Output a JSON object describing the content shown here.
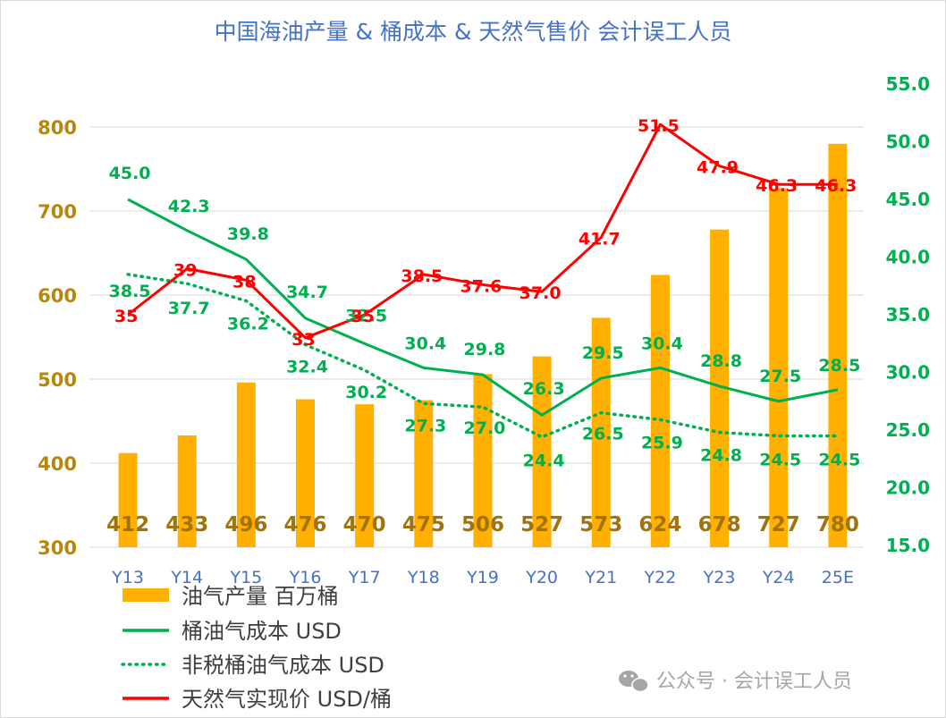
{
  "chart_data": {
    "type": "bar+line",
    "title": "中国海油产量 & 桶成本 & 天然气售价 会计误工人员",
    "categories": [
      "Y13",
      "Y14",
      "Y15",
      "Y16",
      "Y17",
      "Y18",
      "Y19",
      "Y20",
      "Y21",
      "Y22",
      "Y23",
      "Y24",
      "25E"
    ],
    "left_axis": {
      "ylim": [
        300,
        800
      ],
      "ticks": [
        "300",
        "400",
        "500",
        "600",
        "700",
        "800"
      ]
    },
    "right_axis": {
      "ylim": [
        15,
        55
      ],
      "ticks": [
        "15.0",
        "20.0",
        "25.0",
        "30.0",
        "35.0",
        "40.0",
        "45.0",
        "50.0",
        "55.0"
      ]
    },
    "grid": true,
    "legend_position": "bottom-left",
    "series": [
      {
        "name": "油气产量 百万桶",
        "type": "bar",
        "axis": "left",
        "color": "#ffb000",
        "values": [
          412,
          433,
          496,
          476,
          470,
          475,
          506,
          527,
          573,
          624,
          678,
          727,
          780
        ],
        "labels": [
          "412",
          "433",
          "496",
          "476",
          "470",
          "475",
          "506",
          "527",
          "573",
          "624",
          "678",
          "727",
          "780"
        ]
      },
      {
        "name": "桶油气成本 USD",
        "type": "line",
        "axis": "right",
        "color": "#00b050",
        "dash": "solid",
        "values": [
          45.0,
          42.3,
          39.8,
          34.7,
          32.5,
          30.4,
          29.8,
          26.3,
          29.5,
          30.4,
          28.8,
          27.5,
          28.5
        ],
        "labels": [
          "45.0",
          "42.3",
          "39.8",
          "34.7",
          "32.5",
          "30.4",
          "29.8",
          "26.3",
          "29.5",
          "30.4",
          "28.8",
          "27.5",
          "28.5"
        ]
      },
      {
        "name": "非税桶油气成本 USD",
        "type": "line",
        "axis": "right",
        "color": "#00b050",
        "dash": "dotted",
        "values": [
          38.5,
          37.7,
          36.2,
          32.4,
          30.2,
          27.3,
          27.0,
          24.4,
          26.5,
          25.9,
          24.8,
          24.5,
          24.5
        ],
        "labels": [
          "38.5",
          "37.7",
          "36.2",
          "32.4",
          "30.2",
          "27.3",
          "27.0",
          "24.4",
          "26.5",
          "25.9",
          "24.8",
          "24.5",
          "24.5"
        ]
      },
      {
        "name": "天然气实现价 USD/桶",
        "type": "line",
        "axis": "right",
        "color": "#ff0000",
        "dash": "solid",
        "values": [
          35,
          39,
          38,
          33,
          35,
          38.5,
          37.6,
          37.0,
          41.7,
          51.5,
          47.9,
          46.3,
          46.3
        ],
        "labels": [
          "35",
          "39",
          "38",
          "33",
          "35",
          "38.5",
          "37.6",
          "37.0",
          "41.7",
          "51.5",
          "47.9",
          "46.3",
          "46.3"
        ]
      }
    ]
  },
  "watermark": {
    "icon": "wechat-icon",
    "text": "公众号 · 会计误工人员"
  }
}
